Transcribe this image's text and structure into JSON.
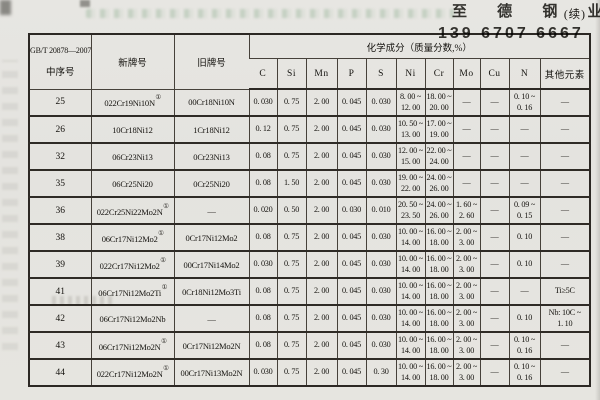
{
  "page": {
    "continued_label": "(续)"
  },
  "watermark": {
    "line1": "至 德 钢 业",
    "line2": "139 6707 6667",
    "color": "#9fc6d3"
  },
  "table": {
    "header": {
      "standard_no": "GB/T 20878—2007",
      "seq_label": "中序号",
      "new_grade_label": "新牌号",
      "old_grade_label": "旧牌号",
      "composition_label": "化学成分（质量分数,%）",
      "elements": [
        "C",
        "Si",
        "Mn",
        "P",
        "S",
        "Ni",
        "Cr",
        "Mo",
        "Cu",
        "N",
        "其他元素"
      ]
    },
    "rows": [
      {
        "no": "25",
        "new_name": "022Cr19Ni10N",
        "new_sup": "①",
        "old_name": "00Cr18Ni10N",
        "values": [
          "0. 030",
          "0. 75",
          "2. 00",
          "0. 045",
          "0. 030",
          "8. 00 ~\n12. 00",
          "18. 00 ~\n20. 00",
          "—",
          "—",
          "0. 10 ~\n0. 16",
          "—"
        ]
      },
      {
        "no": "26",
        "new_name": "10Cr18Ni12",
        "new_sup": "",
        "old_name": "1Cr18Ni12",
        "values": [
          "0. 12",
          "0. 75",
          "2. 00",
          "0. 045",
          "0. 030",
          "10. 50 ~\n13. 00",
          "17. 00 ~\n19. 00",
          "—",
          "—",
          "—",
          "—"
        ]
      },
      {
        "no": "32",
        "new_name": "06Cr23Ni13",
        "new_sup": "",
        "old_name": "0Cr23Ni13",
        "values": [
          "0. 08",
          "0. 75",
          "2. 00",
          "0. 045",
          "0. 030",
          "12. 00 ~\n15. 00",
          "22. 00 ~\n24. 00",
          "—",
          "—",
          "—",
          "—"
        ]
      },
      {
        "no": "35",
        "new_name": "06Cr25Ni20",
        "new_sup": "",
        "old_name": "0Cr25Ni20",
        "values": [
          "0. 08",
          "1. 50",
          "2. 00",
          "0. 045",
          "0. 030",
          "19. 00 ~\n22. 00",
          "24. 00 ~\n26. 00",
          "—",
          "—",
          "—",
          "—"
        ]
      },
      {
        "no": "36",
        "new_name": "022Cr25Ni22Mo2N",
        "new_sup": "①",
        "old_name": "—",
        "values": [
          "0. 020",
          "0. 50",
          "2. 00",
          "0. 030",
          "0. 010",
          "20. 50 ~\n23. 50",
          "24. 00 ~\n26. 00",
          "1. 60 ~\n2. 60",
          "—",
          "0. 09 ~\n0. 15",
          "—"
        ]
      },
      {
        "no": "38",
        "new_name": "06Cr17Ni12Mo2",
        "new_sup": "①",
        "old_name": "0Cr17Ni12Mo2",
        "values": [
          "0. 08",
          "0. 75",
          "2. 00",
          "0. 045",
          "0. 030",
          "10. 00 ~\n14. 00",
          "16. 00 ~\n18. 00",
          "2. 00 ~\n3. 00",
          "—",
          "0. 10",
          "—"
        ]
      },
      {
        "no": "39",
        "new_name": "022Cr17Ni12Mo2",
        "new_sup": "①",
        "old_name": "00Cr17Ni14Mo2",
        "values": [
          "0. 030",
          "0. 75",
          "2. 00",
          "0. 045",
          "0. 030",
          "10. 00 ~\n14. 00",
          "16. 00 ~\n18. 00",
          "2. 00 ~\n3. 00",
          "—",
          "0. 10",
          "—"
        ]
      },
      {
        "no": "41",
        "new_name": "06Cr17Ni12Mo2Ti",
        "new_sup": "①",
        "old_name": "0Cr18Ni12Mo3Ti",
        "values": [
          "0. 08",
          "0. 75",
          "2. 00",
          "0. 045",
          "0. 030",
          "10. 00 ~\n14. 00",
          "16. 00 ~\n18. 00",
          "2. 00 ~\n3. 00",
          "—",
          "—",
          "Ti≥5C"
        ]
      },
      {
        "no": "42",
        "new_name": "06Cr17Ni12Mo2Nb",
        "new_sup": "",
        "old_name": "—",
        "values": [
          "0. 08",
          "0. 75",
          "2. 00",
          "0. 045",
          "0. 030",
          "10. 00 ~\n14. 00",
          "16. 00 ~\n18. 00",
          "2. 00 ~\n3. 00",
          "—",
          "0. 10",
          "Nb: 10C ~\n1. 10"
        ]
      },
      {
        "no": "43",
        "new_name": "06Cr17Ni12Mo2N",
        "new_sup": "①",
        "old_name": "0Cr17Ni12Mo2N",
        "values": [
          "0. 08",
          "0. 75",
          "2. 00",
          "0. 045",
          "0. 030",
          "10. 00 ~\n14. 00",
          "16. 00 ~\n18. 00",
          "2. 00 ~\n3. 00",
          "—",
          "0. 10 ~\n0. 16",
          "—"
        ]
      },
      {
        "no": "44",
        "new_name": "022Cr17Ni12Mo2N",
        "new_sup": "①",
        "old_name": "00Cr17Ni13Mo2N",
        "values": [
          "0. 030",
          "0. 75",
          "2. 00",
          "0. 045",
          "0. 30",
          "10. 00 ~\n14. 00",
          "16. 00 ~\n18. 00",
          "2. 00 ~\n3. 00",
          "—",
          "0. 10 ~\n0. 16",
          "—"
        ]
      }
    ]
  }
}
